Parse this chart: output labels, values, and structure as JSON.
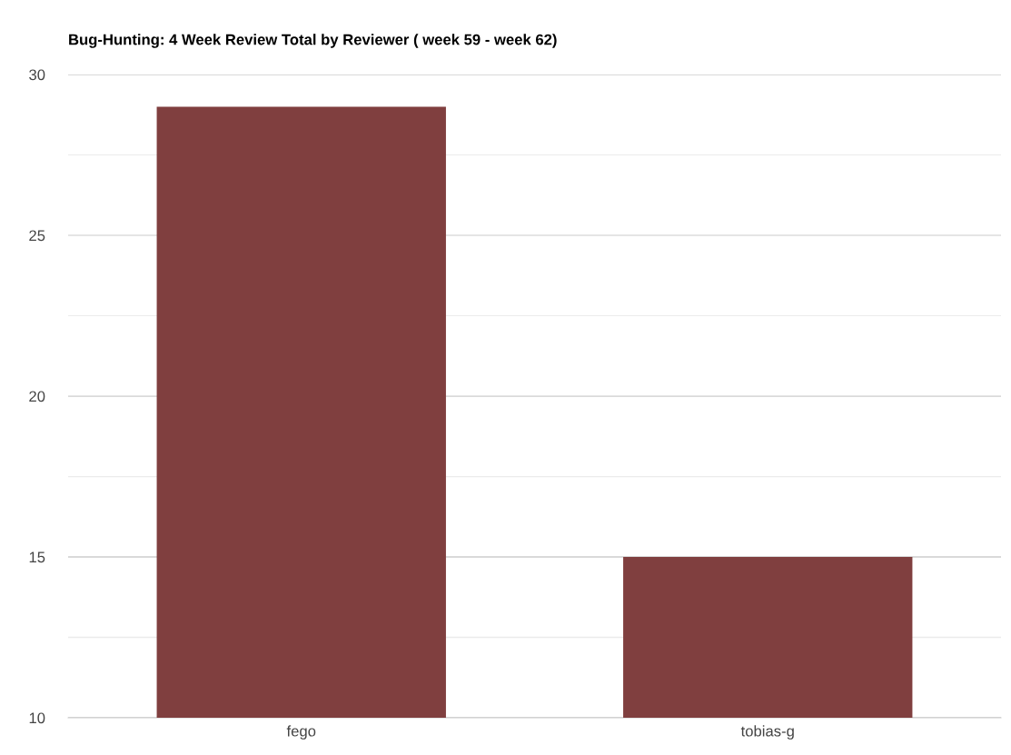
{
  "chart_data": {
    "type": "bar",
    "title": "Bug-Hunting: 4 Week Review Total by Reviewer ( week 59 - week 62)",
    "categories": [
      "fego",
      "tobias-g"
    ],
    "series": [
      {
        "color": "#803f3f",
        "values": [
          29,
          15
        ]
      }
    ],
    "ylim": [
      10,
      30
    ],
    "yticks": [
      10,
      {
        "value": 12.5,
        "label": null
      },
      15,
      {
        "value": 17.5,
        "label": null
      },
      20,
      {
        "value": 22.5,
        "label": null
      },
      25,
      {
        "value": 27.5,
        "label": null
      },
      30
    ],
    "grid": "y"
  }
}
